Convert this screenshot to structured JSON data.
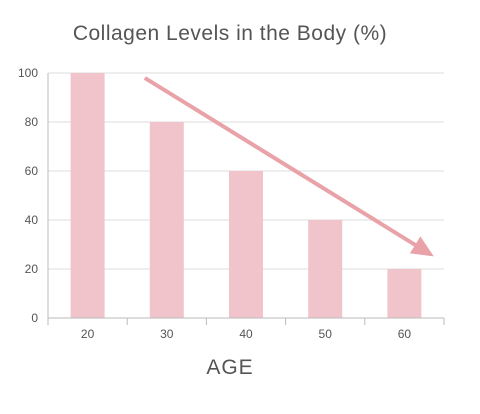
{
  "colors": {
    "bar": "#f0c4ca",
    "arrow": "#e9a3a8",
    "grid": "#dddddd",
    "axis": "#bbbbbb",
    "text": "#555555"
  },
  "chart_data": {
    "type": "bar",
    "title": "Collagen Levels in the Body (%)",
    "xlabel": "AGE",
    "ylabel": "",
    "categories": [
      "20",
      "30",
      "40",
      "50",
      "60"
    ],
    "values": [
      100,
      80,
      60,
      40,
      20
    ],
    "ylim": [
      0,
      100
    ],
    "yticks": [
      0,
      20,
      40,
      60,
      80,
      100
    ],
    "grid": true,
    "annotations": [
      {
        "type": "trend-arrow",
        "from_category": "30",
        "from_value": 98,
        "to_category": "60",
        "to_value": 26
      }
    ]
  }
}
